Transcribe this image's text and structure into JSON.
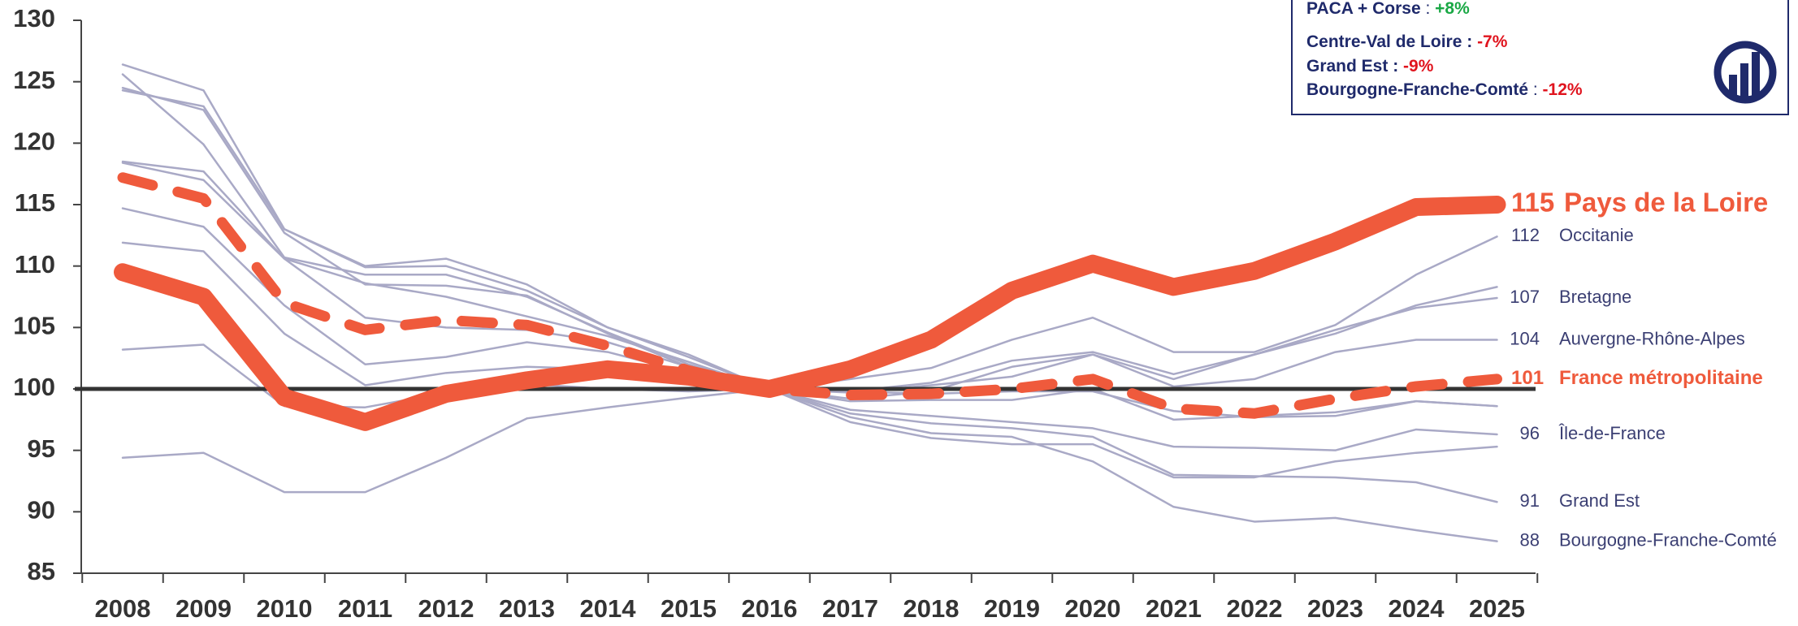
{
  "chart_data": {
    "type": "line",
    "categories": [
      "2008",
      "2009",
      "2010",
      "2011",
      "2012",
      "2013",
      "2014",
      "2015",
      "2016",
      "2017",
      "2018",
      "2019",
      "2020",
      "2021",
      "2022",
      "2023",
      "2024",
      "2025"
    ],
    "ylim": [
      85,
      130
    ],
    "yticks": [
      85,
      90,
      95,
      100,
      105,
      110,
      115,
      120,
      125,
      130
    ],
    "reference_line": 100,
    "series": [
      {
        "color": "#a9a9c6",
        "values": [
          126.4,
          124.3,
          113,
          109.9,
          110,
          108,
          105,
          102.6,
          100,
          97.3,
          96,
          95.5,
          95.5,
          92.8,
          92.8,
          94.1,
          94.8,
          95.3
        ]
      },
      {
        "color": "#a9a9c6",
        "values": [
          125.6,
          119.9,
          110.7,
          109.3,
          109.3,
          107.5,
          104.6,
          102,
          100,
          99,
          99.1,
          99.1,
          100,
          97.5,
          97.8,
          98.1,
          99,
          98.6
        ]
      },
      {
        "color": "#a9a9c6",
        "values": [
          124.3,
          123,
          113,
          110,
          110.6,
          108.5,
          105,
          102.8,
          100,
          99.2,
          99.8,
          101.8,
          102.8,
          100.8,
          102.8,
          104.5,
          106.8,
          108.3
        ]
      },
      {
        "color": "#a9a9c6",
        "values": [
          118.5,
          117.7,
          110.6,
          108.6,
          107.5,
          105.9,
          104.3,
          102.2,
          100,
          99.8,
          99.6,
          99.8,
          99.8,
          98.2,
          97.7,
          97.8,
          99,
          98.6
        ]
      },
      {
        "name": "Occitanie",
        "end_label": "112",
        "color": "#a9a9c6",
        "values": [
          111.9,
          111.2,
          104.5,
          100.3,
          101.3,
          101.8,
          101.6,
          101,
          100,
          100.8,
          101.7,
          104,
          105.8,
          103,
          103,
          105.2,
          109.3,
          112.4
        ]
      },
      {
        "name": "Bretagne",
        "end_label": "107",
        "color": "#a9a9c6",
        "values": [
          114.7,
          113.2,
          106.8,
          102,
          102.6,
          103.8,
          103,
          101.3,
          100,
          99.8,
          100.5,
          102.3,
          103,
          101.2,
          102.8,
          104.8,
          106.6,
          107.4
        ]
      },
      {
        "name": "Auvergne-Rhône-Alpes",
        "end_label": "104",
        "color": "#a9a9c6",
        "values": [
          118.4,
          117,
          110.6,
          105.8,
          105,
          104.8,
          103.8,
          101.8,
          100,
          99.7,
          100.3,
          101,
          102.8,
          100.2,
          100.8,
          103,
          104,
          104
        ]
      },
      {
        "name": "Île-de-France",
        "end_label": "96",
        "color": "#a9a9c6",
        "values": [
          103.2,
          103.6,
          98.6,
          98.5,
          99.7,
          100.4,
          100,
          99.8,
          100,
          98.3,
          97.8,
          97.3,
          96.8,
          95.3,
          95.2,
          95,
          96.7,
          96.3
        ]
      },
      {
        "name": "Grand Est",
        "end_label": "91",
        "color": "#a9a9c6",
        "values": [
          124.5,
          122.7,
          112.7,
          108.5,
          108.4,
          107.6,
          104.5,
          101.8,
          100,
          98,
          97.2,
          96.8,
          96.1,
          93,
          92.9,
          92.8,
          92.4,
          90.8
        ]
      },
      {
        "name": "Bourgogne-Franche-Comté",
        "end_label": "88",
        "color": "#a9a9c6",
        "values": [
          94.4,
          94.8,
          91.6,
          91.6,
          94.4,
          97.6,
          98.5,
          99.3,
          100,
          97.7,
          96.4,
          96.1,
          94.1,
          90.4,
          89.2,
          89.5,
          88.5,
          87.6
        ]
      },
      {
        "name": "France métropolitaine",
        "end_label": "101",
        "color": "#ef5a3c",
        "dashed": true,
        "highlight": true,
        "values": [
          117.2,
          115.5,
          107,
          104.8,
          105.6,
          105.2,
          103.5,
          101.5,
          100,
          99.5,
          99.6,
          100,
          100.8,
          98.4,
          98,
          99.2,
          100.2,
          100.8
        ]
      },
      {
        "name": "Pays de la Loire",
        "end_label": "115",
        "color": "#ef5a3c",
        "highlight": true,
        "thick": true,
        "values": [
          109.5,
          107.5,
          99.3,
          97.3,
          99.6,
          100.7,
          101.6,
          101,
          100,
          101.6,
          104,
          108,
          110.2,
          108.3,
          109.6,
          112,
          114.8,
          115
        ]
      }
    ],
    "annotations": [
      {
        "region": "PACA + Corse",
        "sep": " : ",
        "change": "+8%",
        "color": "#1aa845"
      },
      {
        "region": "Centre-Val de Loire : ",
        "change": "-7%",
        "color": "#e0141e"
      },
      {
        "region": "Grand Est : ",
        "change": "-9%",
        "color": "#e0141e"
      },
      {
        "region": "Bourgogne-Franche-Comté",
        "sep": " : ",
        "change": "-12%",
        "color": "#e0141e"
      }
    ]
  }
}
